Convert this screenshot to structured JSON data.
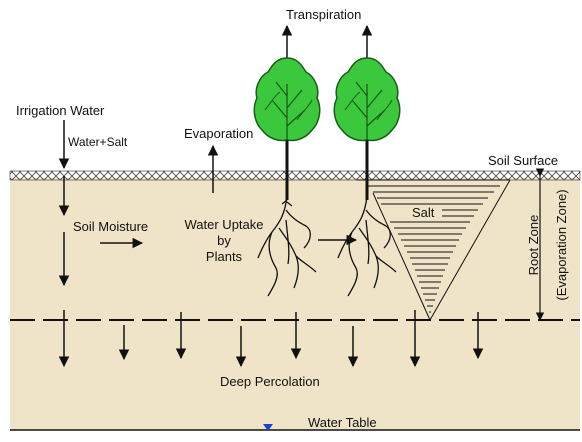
{
  "labels": {
    "transpiration": "Transpiration",
    "irrigation_water": "Irrigation Water",
    "water_salt": "Water+Salt",
    "evaporation": "Evaporation",
    "soil_surface": "Soil Surface",
    "soil_moisture": "Soil Moisture",
    "water_uptake_line1": "Water Uptake",
    "water_uptake_line2": "by",
    "water_uptake_line3": "Plants",
    "salt": "Salt",
    "root_zone": "Root Zone",
    "evaporation_zone": "(Evaporation Zone)",
    "deep_percolation": "Deep Percolation",
    "water_table": "Water Table"
  },
  "colors": {
    "soil": "#f0e4c8",
    "tree_green": "#3cc83c",
    "tree_outline": "#1a5c1a",
    "water_table_marker": "#1f3fd6",
    "line": "#111111"
  }
}
